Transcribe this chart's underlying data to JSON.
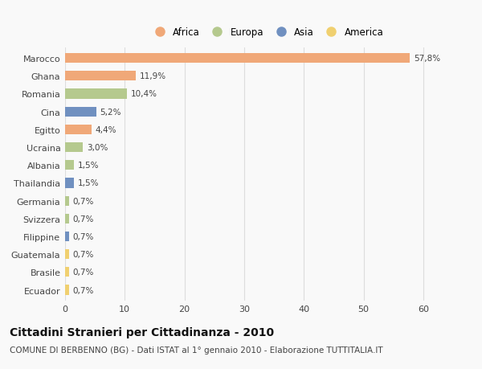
{
  "categories": [
    "Marocco",
    "Ghana",
    "Romania",
    "Cina",
    "Egitto",
    "Ucraina",
    "Albania",
    "Thailandia",
    "Germania",
    "Svizzera",
    "Filippine",
    "Guatemala",
    "Brasile",
    "Ecuador"
  ],
  "values": [
    57.8,
    11.9,
    10.4,
    5.2,
    4.4,
    3.0,
    1.5,
    1.5,
    0.7,
    0.7,
    0.7,
    0.7,
    0.7,
    0.7
  ],
  "labels": [
    "57,8%",
    "11,9%",
    "10,4%",
    "5,2%",
    "4,4%",
    "3,0%",
    "1,5%",
    "1,5%",
    "0,7%",
    "0,7%",
    "0,7%",
    "0,7%",
    "0,7%",
    "0,7%"
  ],
  "continents": [
    "Africa",
    "Africa",
    "Europa",
    "Asia",
    "Africa",
    "Europa",
    "Europa",
    "Asia",
    "Europa",
    "Europa",
    "Asia",
    "America",
    "America",
    "America"
  ],
  "continent_colors": {
    "Africa": "#F0A878",
    "Europa": "#B5C98E",
    "Asia": "#7090C0",
    "America": "#F0D070"
  },
  "xlim": [
    0,
    65
  ],
  "xticks": [
    0,
    10,
    20,
    30,
    40,
    50,
    60
  ],
  "title": "Cittadini Stranieri per Cittadinanza - 2010",
  "subtitle": "COMUNE DI BERBENNO (BG) - Dati ISTAT al 1° gennaio 2010 - Elaborazione TUTTITALIA.IT",
  "bg_color": "#F9F9F9",
  "grid_color": "#DDDDDD",
  "bar_height": 0.55,
  "legend_order": [
    "Africa",
    "Europa",
    "Asia",
    "America"
  ],
  "label_fontsize": 7.5,
  "ytick_fontsize": 8,
  "xtick_fontsize": 8,
  "title_fontsize": 10,
  "subtitle_fontsize": 7.5
}
